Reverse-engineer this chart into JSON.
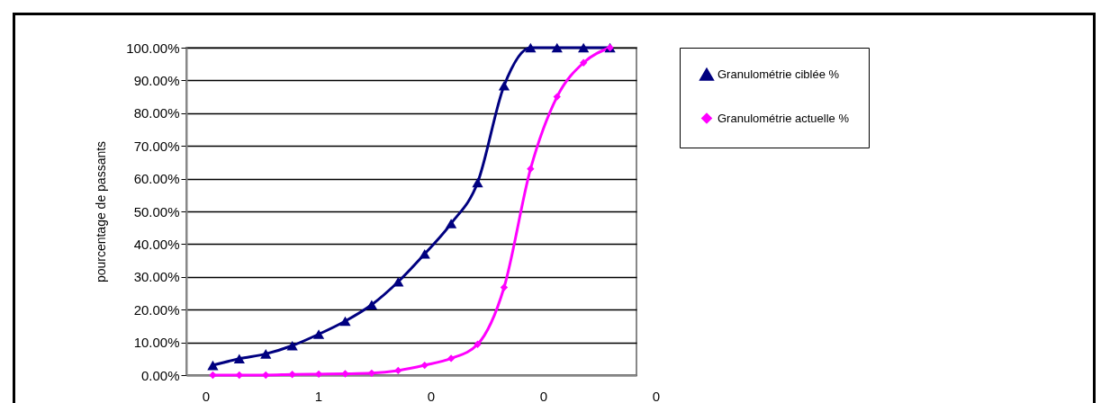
{
  "chart_data": {
    "type": "line",
    "ylabel": "pourcentage de passants",
    "categories": [
      null,
      null,
      null,
      null,
      null,
      null,
      null,
      null,
      null,
      null,
      null,
      null,
      null,
      null,
      null,
      null
    ],
    "series": [
      {
        "name": "Granulométrie ciblée %",
        "color": "#000080",
        "marker": "triangle",
        "values": [
          3,
          5,
          6.5,
          9,
          12.5,
          16.5,
          21.5,
          28.5,
          37,
          46.3,
          58.8,
          88.4,
          100,
          100,
          100,
          100
        ]
      },
      {
        "name": "Granulométrie actuelle %",
        "color": "#ff00ff",
        "marker": "diamond",
        "values": [
          0,
          0,
          0,
          0.2,
          0.3,
          0.4,
          0.6,
          1.4,
          3,
          5.1,
          9.4,
          26.8,
          63,
          85,
          95.4,
          100
        ]
      }
    ],
    "annotations": [
      "0",
      "1",
      "0",
      "0",
      "0"
    ],
    "ylim": [
      0,
      100
    ],
    "yticks": [
      {
        "value": 0,
        "label": "0.00%"
      },
      {
        "value": 10,
        "label": "10.00%"
      },
      {
        "value": 20,
        "label": "20.00%"
      },
      {
        "value": 30,
        "label": "30.00%"
      },
      {
        "value": 40,
        "label": "40.00%"
      },
      {
        "value": 50,
        "label": "50.00%"
      },
      {
        "value": 60,
        "label": "60.00%"
      },
      {
        "value": 70,
        "label": "70.00%"
      },
      {
        "value": 80,
        "label": "80.00%"
      },
      {
        "value": 90,
        "label": "90.00%"
      },
      {
        "value": 100,
        "label": "100.00%"
      }
    ],
    "grid": "y",
    "legend": "right"
  }
}
